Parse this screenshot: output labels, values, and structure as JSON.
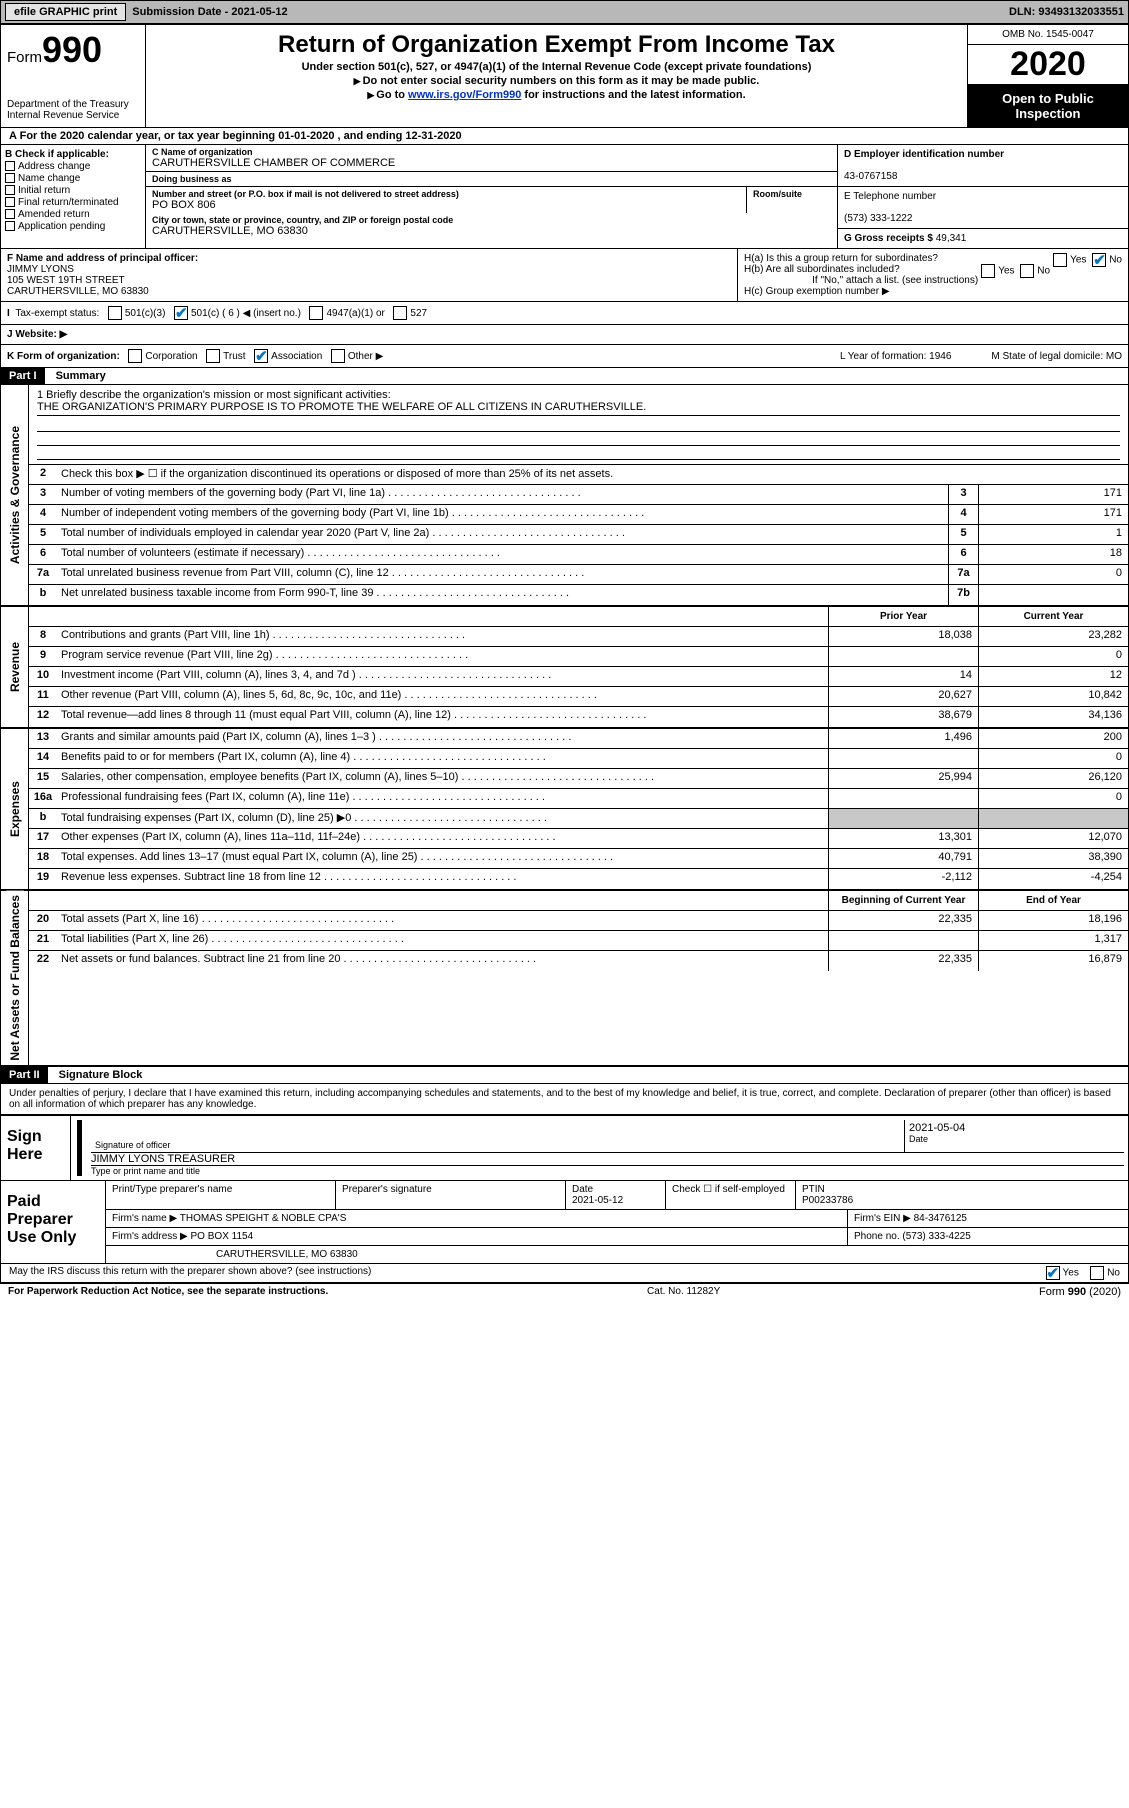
{
  "topbar": {
    "efile": "efile GRAPHIC print",
    "submission_label": "Submission Date",
    "submission_date": "2021-05-12",
    "dln_label": "DLN:",
    "dln": "93493132033551"
  },
  "header": {
    "form_prefix": "Form",
    "form_number": "990",
    "dept": "Department of the Treasury",
    "irs": "Internal Revenue Service",
    "title": "Return of Organization Exempt From Income Tax",
    "subtitle": "Under section 501(c), 527, or 4947(a)(1) of the Internal Revenue Code (except private foundations)",
    "note1": "Do not enter social security numbers on this form as it may be made public.",
    "note2_pre": "Go to ",
    "note2_link": "www.irs.gov/Form990",
    "note2_post": " for instructions and the latest information.",
    "omb": "OMB No. 1545-0047",
    "year": "2020",
    "open": "Open to Public Inspection"
  },
  "rowA": "For the 2020 calendar year, or tax year beginning 01-01-2020   , and ending 12-31-2020",
  "boxB": {
    "title": "B Check if applicable:",
    "opts": [
      "Address change",
      "Name change",
      "Initial return",
      "Final return/terminated",
      "Amended return",
      "Application pending"
    ]
  },
  "boxC": {
    "name_label": "C Name of organization",
    "name": "CARUTHERSVILLE CHAMBER OF COMMERCE",
    "dba_label": "Doing business as",
    "dba": "",
    "addr_label": "Number and street (or P.O. box if mail is not delivered to street address)",
    "room_label": "Room/suite",
    "addr": "PO BOX 806",
    "room": "",
    "city_label": "City or town, state or province, country, and ZIP or foreign postal code",
    "city": "CARUTHERSVILLE, MO  63830"
  },
  "boxD": {
    "label": "D Employer identification number",
    "value": "43-0767158"
  },
  "boxE": {
    "label": "E Telephone number",
    "value": "(573) 333-1222"
  },
  "boxG": {
    "label": "G Gross receipts $",
    "value": "49,341"
  },
  "boxF": {
    "label": "F Name and address of principal officer:",
    "name": "JIMMY LYONS",
    "street": "105 WEST 19TH STREET",
    "city": "CARUTHERSVILLE, MO  63830"
  },
  "boxH": {
    "a": "H(a)  Is this a group return for subordinates?",
    "a_yes": "Yes",
    "a_no": "No",
    "b": "H(b)  Are all subordinates included?",
    "b_yes": "Yes",
    "b_no": "No",
    "b_note": "If \"No,\" attach a list. (see instructions)",
    "c": "H(c)  Group exemption number ▶"
  },
  "rowI": {
    "label": "Tax-exempt status:",
    "opts": [
      "501(c)(3)",
      "501(c) ( 6 ) ◀ (insert no.)",
      "4947(a)(1) or",
      "527"
    ]
  },
  "rowJ": {
    "label": "J   Website: ▶",
    "value": ""
  },
  "rowK": {
    "label": "K Form of organization:",
    "opts": [
      "Corporation",
      "Trust",
      "Association",
      "Other ▶"
    ],
    "L": "L Year of formation: 1946",
    "M": "M State of legal domicile: MO"
  },
  "partI": {
    "hdr": "Part I",
    "title": "Summary",
    "q1_label": "1  Briefly describe the organization's mission or most significant activities:",
    "q1": "THE ORGANIZATION'S PRIMARY PURPOSE IS TO PROMOTE THE WELFARE OF ALL CITIZENS IN CARUTHERSVILLE.",
    "q2": "Check this box ▶ ☐  if the organization discontinued its operations or disposed of more than 25% of its net assets.",
    "lines_gov": [
      {
        "n": "3",
        "t": "Number of voting members of the governing body (Part VI, line 1a)",
        "box": "3",
        "v": "171"
      },
      {
        "n": "4",
        "t": "Number of independent voting members of the governing body (Part VI, line 1b)",
        "box": "4",
        "v": "171"
      },
      {
        "n": "5",
        "t": "Total number of individuals employed in calendar year 2020 (Part V, line 2a)",
        "box": "5",
        "v": "1"
      },
      {
        "n": "6",
        "t": "Total number of volunteers (estimate if necessary)",
        "box": "6",
        "v": "18"
      },
      {
        "n": "7a",
        "t": "Total unrelated business revenue from Part VIII, column (C), line 12",
        "box": "7a",
        "v": "0"
      },
      {
        "n": "b",
        "t": "Net unrelated business taxable income from Form 990-T, line 39",
        "box": "7b",
        "v": ""
      }
    ],
    "col_prior": "Prior Year",
    "col_current": "Current Year",
    "col_beg": "Beginning of Current Year",
    "col_end": "End of Year",
    "revenue": [
      {
        "n": "8",
        "t": "Contributions and grants (Part VIII, line 1h)",
        "p": "18,038",
        "c": "23,282"
      },
      {
        "n": "9",
        "t": "Program service revenue (Part VIII, line 2g)",
        "p": "",
        "c": "0"
      },
      {
        "n": "10",
        "t": "Investment income (Part VIII, column (A), lines 3, 4, and 7d )",
        "p": "14",
        "c": "12"
      },
      {
        "n": "11",
        "t": "Other revenue (Part VIII, column (A), lines 5, 6d, 8c, 9c, 10c, and 11e)",
        "p": "20,627",
        "c": "10,842"
      },
      {
        "n": "12",
        "t": "Total revenue—add lines 8 through 11 (must equal Part VIII, column (A), line 12)",
        "p": "38,679",
        "c": "34,136"
      }
    ],
    "expenses": [
      {
        "n": "13",
        "t": "Grants and similar amounts paid (Part IX, column (A), lines 1–3 )",
        "p": "1,496",
        "c": "200"
      },
      {
        "n": "14",
        "t": "Benefits paid to or for members (Part IX, column (A), line 4)",
        "p": "",
        "c": "0"
      },
      {
        "n": "15",
        "t": "Salaries, other compensation, employee benefits (Part IX, column (A), lines 5–10)",
        "p": "25,994",
        "c": "26,120"
      },
      {
        "n": "16a",
        "t": "Professional fundraising fees (Part IX, column (A), line 11e)",
        "p": "",
        "c": "0"
      },
      {
        "n": "b",
        "t": "Total fundraising expenses (Part IX, column (D), line 25) ▶0",
        "p": "",
        "c": "",
        "grey": true
      },
      {
        "n": "17",
        "t": "Other expenses (Part IX, column (A), lines 11a–11d, 11f–24e)",
        "p": "13,301",
        "c": "12,070"
      },
      {
        "n": "18",
        "t": "Total expenses. Add lines 13–17 (must equal Part IX, column (A), line 25)",
        "p": "40,791",
        "c": "38,390"
      },
      {
        "n": "19",
        "t": "Revenue less expenses. Subtract line 18 from line 12",
        "p": "-2,112",
        "c": "-4,254"
      }
    ],
    "netassets": [
      {
        "n": "20",
        "t": "Total assets (Part X, line 16)",
        "p": "22,335",
        "c": "18,196"
      },
      {
        "n": "21",
        "t": "Total liabilities (Part X, line 26)",
        "p": "",
        "c": "1,317"
      },
      {
        "n": "22",
        "t": "Net assets or fund balances. Subtract line 21 from line 20",
        "p": "22,335",
        "c": "16,879"
      }
    ],
    "side_gov": "Activities & Governance",
    "side_rev": "Revenue",
    "side_exp": "Expenses",
    "side_net": "Net Assets or Fund Balances"
  },
  "partII": {
    "hdr": "Part II",
    "title": "Signature Block",
    "decl": "Under penalties of perjury, I declare that I have examined this return, including accompanying schedules and statements, and to the best of my knowledge and belief, it is true, correct, and complete. Declaration of preparer (other than officer) is based on all information of which preparer has any knowledge."
  },
  "sign": {
    "label": "Sign Here",
    "sig_officer": "Signature of officer",
    "date_label": "Date",
    "date": "2021-05-04",
    "name": "JIMMY LYONS  TREASURER",
    "name_label": "Type or print name and title"
  },
  "prep": {
    "label": "Paid Preparer Use Only",
    "h1": "Print/Type preparer's name",
    "h2": "Preparer's signature",
    "h3_label": "Date",
    "h3": "2021-05-12",
    "h4": "Check ☐ if self-employed",
    "h5_label": "PTIN",
    "h5": "P00233786",
    "firm_name_label": "Firm's name    ▶",
    "firm_name": "THOMAS SPEIGHT & NOBLE CPA'S",
    "firm_ein_label": "Firm's EIN ▶",
    "firm_ein": "84-3476125",
    "firm_addr_label": "Firm's address ▶",
    "firm_addr1": "PO BOX 1154",
    "firm_addr2": "CARUTHERSVILLE, MO  63830",
    "phone_label": "Phone no.",
    "phone": "(573) 333-4225"
  },
  "footer": {
    "discuss": "May the IRS discuss this return with the preparer shown above? (see instructions)",
    "yes": "Yes",
    "no": "No",
    "pra": "For Paperwork Reduction Act Notice, see the separate instructions.",
    "cat": "Cat. No. 11282Y",
    "form": "Form 990 (2020)"
  },
  "colors": {
    "topbar_bg": "#b8b8b8",
    "link": "#0033cc",
    "check": "#0077cc"
  }
}
